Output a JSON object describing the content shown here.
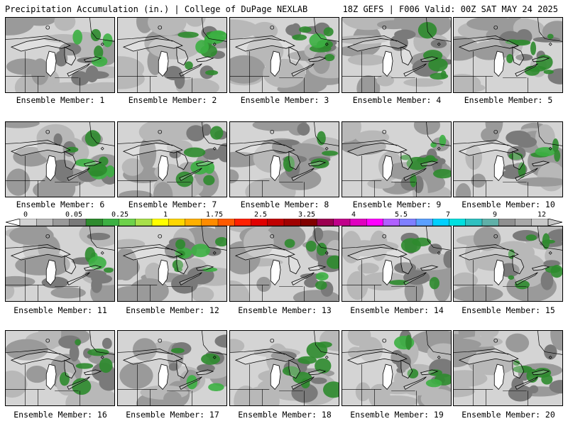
{
  "header": {
    "left": "Precipitation Accumulation (in.) | College of DuPage NEXLAB",
    "right": "18Z GEFS | F006 Valid: 00Z SAT MAY 24 2025"
  },
  "members": [
    {
      "label": "Ensemble Member: 1"
    },
    {
      "label": "Ensemble Member: 2"
    },
    {
      "label": "Ensemble Member: 3"
    },
    {
      "label": "Ensemble Member: 4"
    },
    {
      "label": "Ensemble Member: 5"
    },
    {
      "label": "Ensemble Member: 6"
    },
    {
      "label": "Ensemble Member: 7"
    },
    {
      "label": "Ensemble Member: 8"
    },
    {
      "label": "Ensemble Member: 9"
    },
    {
      "label": "Ensemble Member: 10"
    },
    {
      "label": "Ensemble Member: 11"
    },
    {
      "label": "Ensemble Member: 12"
    },
    {
      "label": "Ensemble Member: 13"
    },
    {
      "label": "Ensemble Member: 14"
    },
    {
      "label": "Ensemble Member: 15"
    },
    {
      "label": "Ensemble Member: 16"
    },
    {
      "label": "Ensemble Member: 17"
    },
    {
      "label": "Ensemble Member: 18"
    },
    {
      "label": "Ensemble Member: 19"
    },
    {
      "label": "Ensemble Member: 20"
    }
  ],
  "colorbar": {
    "ticks": [
      "0",
      "0.05",
      "0.25",
      "1",
      "1.75",
      "2.5",
      "3.25",
      "4",
      "5.5",
      "7",
      "9",
      "12"
    ],
    "colors": [
      "#d3d3d3",
      "#b8b8b8",
      "#9a9a9a",
      "#7a7a7a",
      "#2e8b2e",
      "#3cb043",
      "#6dd24a",
      "#a8e04a",
      "#ffff00",
      "#ffd700",
      "#ffb000",
      "#ff8c00",
      "#ff5a00",
      "#ff2000",
      "#e00000",
      "#c00000",
      "#a00000",
      "#800000",
      "#9b0050",
      "#c0008a",
      "#e000c0",
      "#ff00ff",
      "#b060ff",
      "#7f7fff",
      "#5aa0ff",
      "#00d0ff",
      "#00e0e0",
      "#30c0c0",
      "#60b0a8",
      "#909090",
      "#a8a8a8",
      "#c8c8c8"
    ]
  },
  "map_colors": {
    "land": "#d4d4d4",
    "water": "#ffffff",
    "light_gray": "#b8b8b8",
    "mid_gray": "#9a9a9a",
    "dark_gray": "#7a7a7a",
    "green": "#2e8b2e",
    "bright_green": "#3cb043"
  }
}
